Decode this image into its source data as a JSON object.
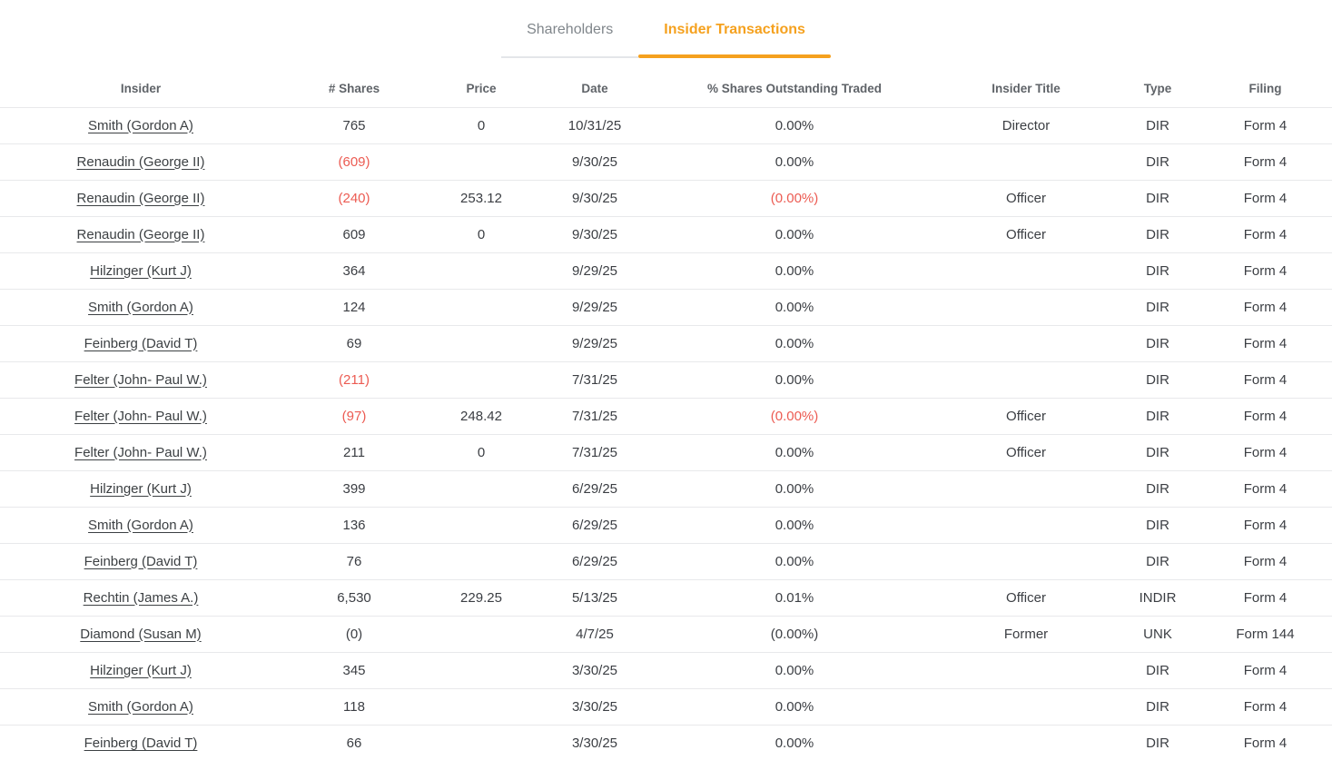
{
  "tabs": [
    {
      "label": "Shareholders",
      "active": false
    },
    {
      "label": "Insider Transactions",
      "active": true
    }
  ],
  "colors": {
    "accent_orange": "#f5a11e",
    "negative_red": "#ec5b52",
    "header_text": "#5f6368",
    "body_text": "#3b3e43",
    "tab_inactive": "#80868b",
    "divider": "#e8e9eb"
  },
  "table": {
    "columns": [
      "Insider",
      "# Shares",
      "Price",
      "Date",
      "% Shares Outstanding Traded",
      "Insider Title",
      "Type",
      "Filing"
    ],
    "rows": [
      {
        "insider": "Smith (Gordon A)",
        "shares": "765",
        "shares_neg": false,
        "price": "0",
        "date": "10/31/25",
        "pct": "0.00%",
        "pct_neg": false,
        "title": "Director",
        "type": "DIR",
        "filing": "Form 4"
      },
      {
        "insider": "Renaudin (George II)",
        "shares": "(609)",
        "shares_neg": true,
        "price": "",
        "date": "9/30/25",
        "pct": "0.00%",
        "pct_neg": false,
        "title": "",
        "type": "DIR",
        "filing": "Form 4"
      },
      {
        "insider": "Renaudin (George II)",
        "shares": "(240)",
        "shares_neg": true,
        "price": "253.12",
        "date": "9/30/25",
        "pct": "(0.00%)",
        "pct_neg": true,
        "title": "Officer",
        "type": "DIR",
        "filing": "Form 4"
      },
      {
        "insider": "Renaudin (George II)",
        "shares": "609",
        "shares_neg": false,
        "price": "0",
        "date": "9/30/25",
        "pct": "0.00%",
        "pct_neg": false,
        "title": "Officer",
        "type": "DIR",
        "filing": "Form 4"
      },
      {
        "insider": "Hilzinger (Kurt J)",
        "shares": "364",
        "shares_neg": false,
        "price": "",
        "date": "9/29/25",
        "pct": "0.00%",
        "pct_neg": false,
        "title": "",
        "type": "DIR",
        "filing": "Form 4"
      },
      {
        "insider": "Smith (Gordon A)",
        "shares": "124",
        "shares_neg": false,
        "price": "",
        "date": "9/29/25",
        "pct": "0.00%",
        "pct_neg": false,
        "title": "",
        "type": "DIR",
        "filing": "Form 4"
      },
      {
        "insider": "Feinberg (David T)",
        "shares": "69",
        "shares_neg": false,
        "price": "",
        "date": "9/29/25",
        "pct": "0.00%",
        "pct_neg": false,
        "title": "",
        "type": "DIR",
        "filing": "Form 4"
      },
      {
        "insider": "Felter (John- Paul W.)",
        "shares": "(211)",
        "shares_neg": true,
        "price": "",
        "date": "7/31/25",
        "pct": "0.00%",
        "pct_neg": false,
        "title": "",
        "type": "DIR",
        "filing": "Form 4"
      },
      {
        "insider": "Felter (John- Paul W.)",
        "shares": "(97)",
        "shares_neg": true,
        "price": "248.42",
        "date": "7/31/25",
        "pct": "(0.00%)",
        "pct_neg": true,
        "title": "Officer",
        "type": "DIR",
        "filing": "Form 4"
      },
      {
        "insider": "Felter (John- Paul W.)",
        "shares": "211",
        "shares_neg": false,
        "price": "0",
        "date": "7/31/25",
        "pct": "0.00%",
        "pct_neg": false,
        "title": "Officer",
        "type": "DIR",
        "filing": "Form 4"
      },
      {
        "insider": "Hilzinger (Kurt J)",
        "shares": "399",
        "shares_neg": false,
        "price": "",
        "date": "6/29/25",
        "pct": "0.00%",
        "pct_neg": false,
        "title": "",
        "type": "DIR",
        "filing": "Form 4"
      },
      {
        "insider": "Smith (Gordon A)",
        "shares": "136",
        "shares_neg": false,
        "price": "",
        "date": "6/29/25",
        "pct": "0.00%",
        "pct_neg": false,
        "title": "",
        "type": "DIR",
        "filing": "Form 4"
      },
      {
        "insider": "Feinberg (David T)",
        "shares": "76",
        "shares_neg": false,
        "price": "",
        "date": "6/29/25",
        "pct": "0.00%",
        "pct_neg": false,
        "title": "",
        "type": "DIR",
        "filing": "Form 4"
      },
      {
        "insider": "Rechtin (James A.)",
        "shares": "6,530",
        "shares_neg": false,
        "price": "229.25",
        "date": "5/13/25",
        "pct": "0.01%",
        "pct_neg": false,
        "title": "Officer",
        "type": "INDIR",
        "filing": "Form 4"
      },
      {
        "insider": "Diamond (Susan M)",
        "shares": "(0)",
        "shares_neg": false,
        "price": "",
        "date": "4/7/25",
        "pct": "(0.00%)",
        "pct_neg": false,
        "title": "Former",
        "type": "UNK",
        "filing": "Form 144"
      },
      {
        "insider": "Hilzinger (Kurt J)",
        "shares": "345",
        "shares_neg": false,
        "price": "",
        "date": "3/30/25",
        "pct": "0.00%",
        "pct_neg": false,
        "title": "",
        "type": "DIR",
        "filing": "Form 4"
      },
      {
        "insider": "Smith (Gordon A)",
        "shares": "118",
        "shares_neg": false,
        "price": "",
        "date": "3/30/25",
        "pct": "0.00%",
        "pct_neg": false,
        "title": "",
        "type": "DIR",
        "filing": "Form 4"
      },
      {
        "insider": "Feinberg (David T)",
        "shares": "66",
        "shares_neg": false,
        "price": "",
        "date": "3/30/25",
        "pct": "0.00%",
        "pct_neg": false,
        "title": "",
        "type": "DIR",
        "filing": "Form 4"
      }
    ]
  }
}
